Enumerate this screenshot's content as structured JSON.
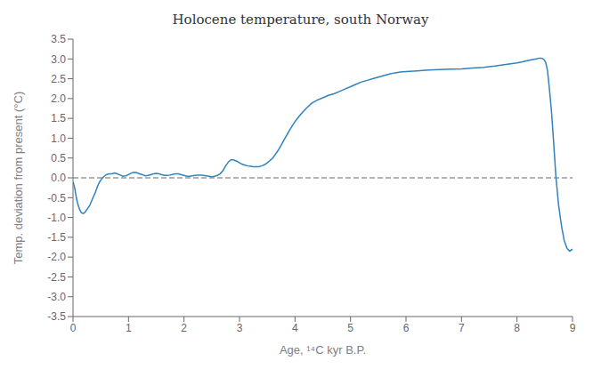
{
  "chart_data": {
    "type": "line",
    "title": "Holocene temperature, south Norway",
    "xlabel": "Age, ¹⁴C kyr B.P.",
    "ylabel": "Temp. deviation from present (°C)",
    "xlim": [
      0,
      9
    ],
    "ylim": [
      -3.5,
      3.5
    ],
    "xticks": [
      0,
      1,
      2,
      3,
      4,
      5,
      6,
      7,
      8,
      9
    ],
    "yticks": [
      -3.5,
      {
        "value": -3,
        "label": "-3.0"
      },
      -2.5,
      {
        "value": -2,
        "label": "-2.0"
      },
      -1.5,
      {
        "value": -1,
        "label": "-1.0"
      },
      -0.5,
      {
        "value": 0,
        "label": "0.0"
      },
      0.5,
      {
        "value": 1,
        "label": "1.0"
      },
      1.5,
      {
        "value": 2,
        "label": "2.0"
      },
      2.5,
      {
        "value": 3,
        "label": "3.0"
      },
      3.5
    ],
    "hline": {
      "y": 0,
      "line_style": "dashed"
    },
    "x": [
      0.0,
      0.03,
      0.06,
      0.09,
      0.12,
      0.15,
      0.18,
      0.21,
      0.24,
      0.27,
      0.3,
      0.33,
      0.36,
      0.4,
      0.44,
      0.48,
      0.52,
      0.56,
      0.6,
      0.65,
      0.7,
      0.75,
      0.8,
      0.85,
      0.9,
      0.95,
      1.0,
      1.05,
      1.1,
      1.15,
      1.2,
      1.25,
      1.3,
      1.35,
      1.4,
      1.45,
      1.5,
      1.55,
      1.6,
      1.65,
      1.7,
      1.75,
      1.8,
      1.85,
      1.9,
      1.95,
      2.0,
      2.05,
      2.1,
      2.15,
      2.2,
      2.25,
      2.3,
      2.35,
      2.4,
      2.45,
      2.5,
      2.55,
      2.6,
      2.65,
      2.7,
      2.75,
      2.8,
      2.85,
      2.9,
      2.95,
      3.0,
      3.05,
      3.1,
      3.15,
      3.2,
      3.25,
      3.3,
      3.35,
      3.4,
      3.45,
      3.5,
      3.6,
      3.7,
      3.8,
      3.9,
      4.0,
      4.1,
      4.2,
      4.3,
      4.4,
      4.5,
      4.6,
      4.7,
      4.8,
      4.9,
      5.0,
      5.1,
      5.2,
      5.3,
      5.4,
      5.5,
      5.6,
      5.7,
      5.8,
      5.9,
      6.0,
      6.2,
      6.4,
      6.6,
      6.8,
      7.0,
      7.2,
      7.4,
      7.6,
      7.8,
      8.0,
      8.1,
      8.2,
      8.3,
      8.35,
      8.4,
      8.43,
      8.46,
      8.49,
      8.52,
      8.55,
      8.58,
      8.62,
      8.66,
      8.7,
      8.75,
      8.8,
      8.85,
      8.9,
      8.95,
      9.0
    ],
    "values": [
      -0.1,
      -0.25,
      -0.5,
      -0.68,
      -0.8,
      -0.88,
      -0.9,
      -0.88,
      -0.82,
      -0.76,
      -0.7,
      -0.6,
      -0.5,
      -0.38,
      -0.22,
      -0.1,
      -0.02,
      0.04,
      0.08,
      0.1,
      0.1,
      0.12,
      0.1,
      0.07,
      0.04,
      0.05,
      0.08,
      0.12,
      0.14,
      0.13,
      0.1,
      0.08,
      0.05,
      0.06,
      0.08,
      0.1,
      0.11,
      0.1,
      0.08,
      0.06,
      0.06,
      0.07,
      0.09,
      0.1,
      0.1,
      0.08,
      0.06,
      0.04,
      0.04,
      0.05,
      0.06,
      0.07,
      0.07,
      0.06,
      0.05,
      0.04,
      0.03,
      0.04,
      0.06,
      0.1,
      0.18,
      0.3,
      0.4,
      0.46,
      0.45,
      0.42,
      0.38,
      0.34,
      0.32,
      0.3,
      0.29,
      0.28,
      0.28,
      0.28,
      0.3,
      0.33,
      0.38,
      0.5,
      0.7,
      0.95,
      1.2,
      1.42,
      1.6,
      1.75,
      1.88,
      1.96,
      2.02,
      2.08,
      2.12,
      2.18,
      2.24,
      2.3,
      2.36,
      2.42,
      2.46,
      2.5,
      2.54,
      2.58,
      2.62,
      2.65,
      2.67,
      2.68,
      2.7,
      2.72,
      2.73,
      2.74,
      2.75,
      2.77,
      2.79,
      2.82,
      2.86,
      2.9,
      2.93,
      2.96,
      2.99,
      3.0,
      3.02,
      3.02,
      3.01,
      2.98,
      2.9,
      2.7,
      2.3,
      1.7,
      0.9,
      0.05,
      -0.7,
      -1.2,
      -1.58,
      -1.78,
      -1.85,
      -1.8
    ]
  }
}
